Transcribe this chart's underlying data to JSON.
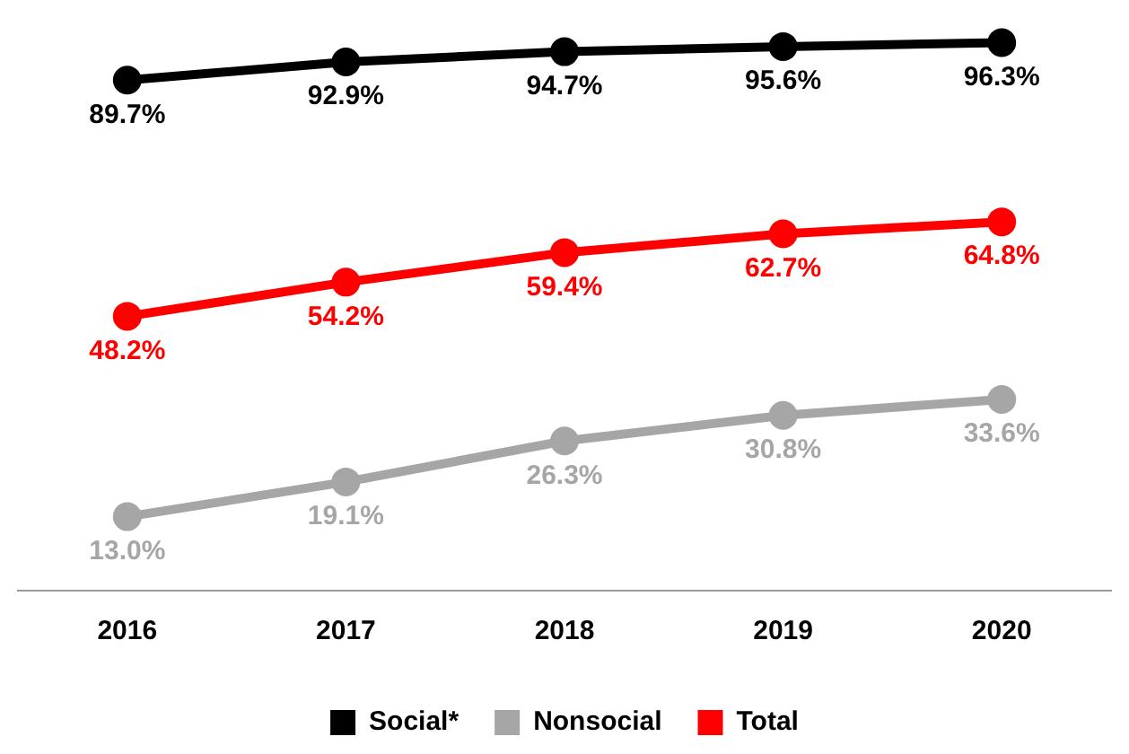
{
  "chart_data": {
    "type": "line",
    "categories": [
      "2016",
      "2017",
      "2018",
      "2019",
      "2020"
    ],
    "series": [
      {
        "name": "Social*",
        "color": "#000000",
        "values": [
          89.7,
          92.9,
          94.7,
          95.6,
          96.3
        ],
        "value_labels": [
          "89.7%",
          "92.9%",
          "94.7%",
          "95.6%",
          "96.3%"
        ]
      },
      {
        "name": "Nonsocial",
        "color": "#a6a6a6",
        "values": [
          13.0,
          19.1,
          26.3,
          30.8,
          33.6
        ],
        "value_labels": [
          "13.0%",
          "19.1%",
          "26.3%",
          "30.8%",
          "33.6%"
        ]
      },
      {
        "name": "Total",
        "color": "#ff0000",
        "values": [
          48.2,
          54.2,
          59.4,
          62.7,
          64.8
        ],
        "value_labels": [
          "48.2%",
          "54.2%",
          "59.4%",
          "62.7%",
          "64.8%"
        ]
      }
    ],
    "grid": false,
    "legend": "bottom",
    "marker": "circle",
    "line_style": "solid"
  }
}
